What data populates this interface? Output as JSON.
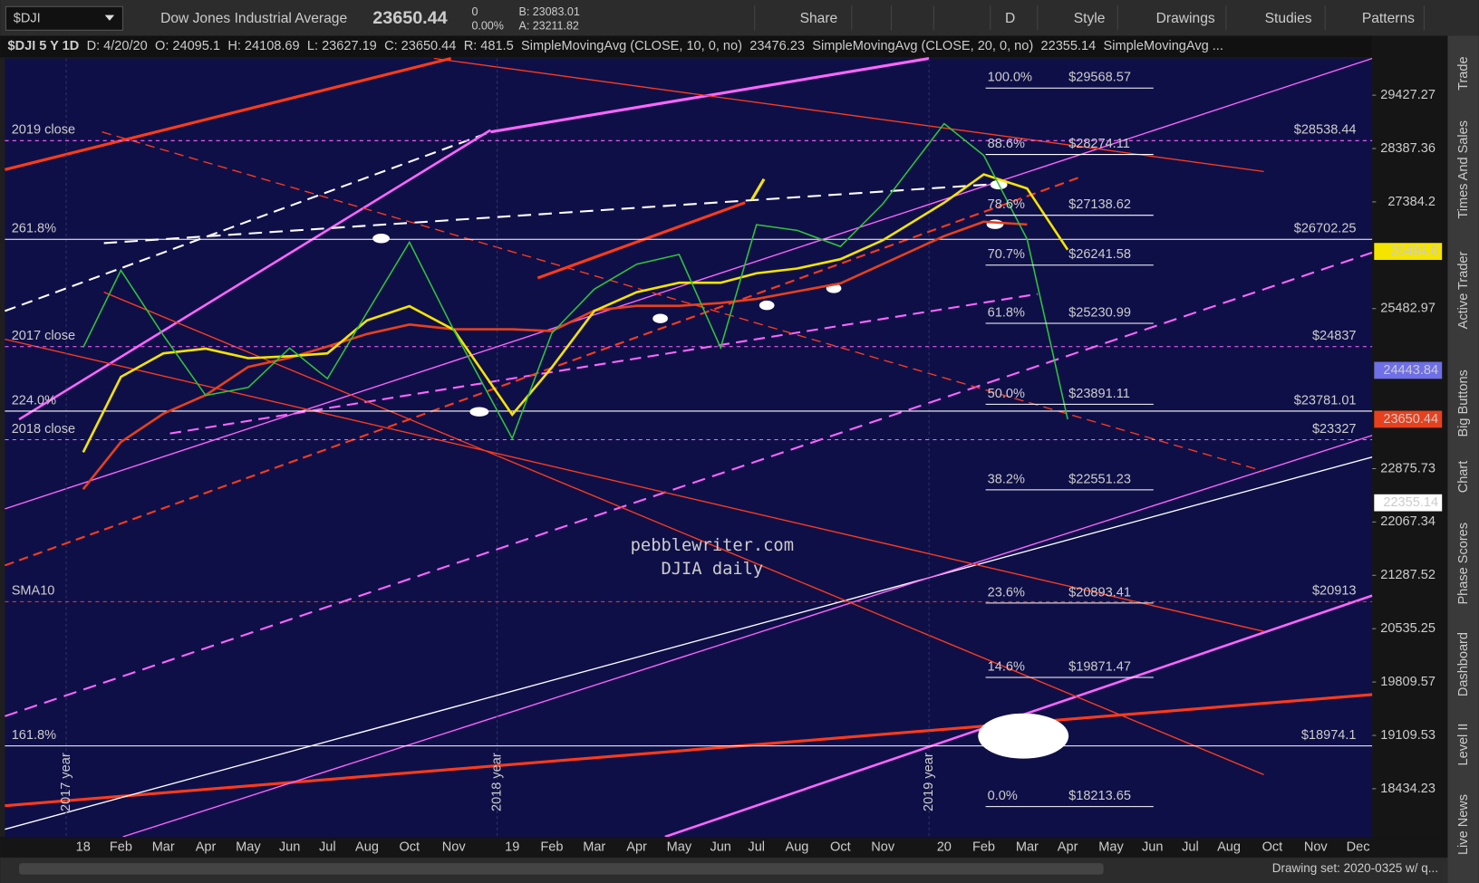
{
  "toolbar": {
    "symbol": "$DJI",
    "name": "Dow Jones Industrial Average",
    "last": "23650.44",
    "change": "0",
    "change_pct": "0.00%",
    "bid": "B: 23083.01",
    "ask": "A: 23211.82",
    "buttons": [
      "Share",
      "D",
      "Style",
      "Drawings",
      "Studies",
      "Patterns"
    ]
  },
  "legend": {
    "chart": "$DJI 5 Y 1D",
    "date": "D: 4/20/20",
    "open": "O: 24095.1",
    "high": "H: 24108.69",
    "low": "L: 23627.19",
    "close": "C: 23650.44",
    "range": "R: 481.5",
    "studies": [
      {
        "name": "SimpleMovingAvg (CLOSE, 10, 0, no)",
        "value": "23476.23",
        "color": "#e0301e"
      },
      {
        "name": "SimpleMovingAvg (CLOSE, 20, 0, no)",
        "value": "22355.14",
        "color": "#ffffff"
      },
      {
        "name": "SimpleMovingAvg ...",
        "value": "",
        "color": "#8a8aff"
      }
    ]
  },
  "chart_data": {
    "type": "line",
    "log_scale": true,
    "categories": [
      "18",
      "Feb",
      "Mar",
      "Apr",
      "May",
      "Jun",
      "Jul",
      "Aug",
      "Oct",
      "Nov",
      "19",
      "Feb",
      "Mar",
      "Apr",
      "May",
      "Jun",
      "Jul",
      "Aug",
      "Oct",
      "Nov",
      "20",
      "Feb",
      "Mar",
      "Apr",
      "May",
      "Jun",
      "Jul",
      "Aug",
      "Oct",
      "Nov",
      "Dec"
    ],
    "series": [
      {
        "color": "#2fc43a",
        "values": [
          24824,
          26149,
          25029,
          24033,
          24163,
          24813,
          24307,
          25415,
          26651,
          25115,
          23346,
          25064,
          25819,
          26258,
          26430,
          24819,
          26966,
          26864,
          26573,
          27347,
          28868,
          28256,
          26703,
          23650.44,
          null,
          null,
          null,
          null,
          null,
          null,
          null
        ]
      },
      {
        "color": "#f5e400",
        "values": [
          23130,
          24336,
          24725,
          24804,
          24645,
          24678,
          24725,
          25281,
          25525,
          25122,
          23724,
          24492,
          25443,
          25767,
          25931,
          25931,
          26097,
          26181,
          26346,
          26685,
          27370,
          27897,
          27633,
          26515,
          null,
          null,
          null,
          null,
          null,
          null,
          null
        ]
      },
      {
        "color": "#e8401c",
        "values": [
          22560,
          23290,
          23740,
          24040,
          24500,
          24650,
          24840,
          25050,
          25210,
          25130,
          25130,
          25100,
          25450,
          25530,
          25530,
          25580,
          25650,
          25780,
          25920,
          26260,
          26760,
          27020,
          26970,
          null,
          null,
          null,
          null,
          null,
          null,
          null,
          null
        ]
      }
    ],
    "ylim": [
      17846,
      30166
    ],
    "yticks": [
      29427.27,
      28387.36,
      27384.2,
      25482.97,
      22875.73,
      22067.34,
      21287.52,
      20535.25,
      19809.57,
      19109.53,
      18434.23
    ],
    "price_tags": [
      {
        "value": 26484.6,
        "color": "#f5e400"
      },
      {
        "value": 24443.84,
        "color": "#6f6fe8"
      },
      {
        "value": 23650.44,
        "color": "#e8401c"
      },
      {
        "value": 22355.14,
        "color": "#ffffff"
      }
    ],
    "hlines": [
      {
        "name": "2019 close",
        "value": 28538.44,
        "label": "$28538.44",
        "color": "#ff66ff",
        "dashed": true
      },
      {
        "name": "261.8%",
        "value": 26702.25,
        "label": "$26702.25",
        "color": "#ffffff",
        "dashed": false
      },
      {
        "name": "2017 close",
        "value": 24837,
        "label": "$24837",
        "color": "#ff66ff",
        "dashed": true
      },
      {
        "name": "224.0%",
        "value": 23781.01,
        "label": "$23781.01",
        "color": "#ffffff",
        "dashed": false
      },
      {
        "name": "2018 close",
        "value": 23327,
        "label": "$23327",
        "color": "#ff66ff",
        "dashed": true
      },
      {
        "name": "SMA10",
        "value": 20913,
        "label": "$20913",
        "color": "#ff3b1a",
        "dashed": true
      },
      {
        "name": "161.8%",
        "value": 18974.1,
        "label": "$18974.1",
        "color": "#ffffff",
        "dashed": false
      }
    ],
    "fib_levels": [
      {
        "pct": "100.0%",
        "value": 29568.57,
        "label": "$29568.57"
      },
      {
        "pct": "88.6%",
        "value": 28274.11,
        "label": "$28274.11"
      },
      {
        "pct": "78.6%",
        "value": 27138.62,
        "label": "$27138.62"
      },
      {
        "pct": "70.7%",
        "value": 26241.58,
        "label": "$26241.58"
      },
      {
        "pct": "61.8%",
        "value": 25230.99,
        "label": "$25230.99"
      },
      {
        "pct": "50.0%",
        "value": 23891.11,
        "label": "$23891.11"
      },
      {
        "pct": "38.2%",
        "value": 22551.23,
        "label": "$22551.23"
      },
      {
        "pct": "23.6%",
        "value": 20893.41,
        "label": "$20893.41"
      },
      {
        "pct": "14.6%",
        "value": 19871.47,
        "label": "$19871.47"
      },
      {
        "pct": "0.0%",
        "value": 18213.65,
        "label": "$18213.65"
      }
    ],
    "watermark": [
      "pebblewriter.com",
      "DJIA daily"
    ],
    "year_labels": [
      "2017 year",
      "2018 year",
      "2019 year"
    ]
  },
  "side_tabs": [
    "Trade",
    "Times And Sales",
    "Active Trader",
    "Big Buttons",
    "Chart",
    "Phase Scores",
    "Dashboard",
    "Level II",
    "Live News"
  ],
  "status": "Drawing set: 2020-0325 w/ q..."
}
